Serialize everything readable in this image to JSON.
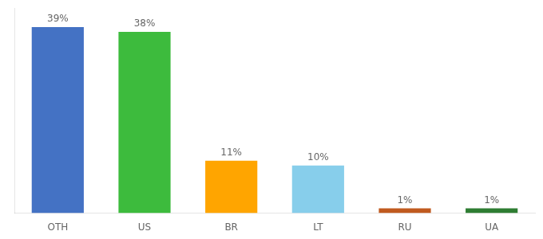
{
  "chart_data": {
    "type": "bar",
    "categories": [
      "OTH",
      "US",
      "BR",
      "LT",
      "RU",
      "UA"
    ],
    "values": [
      39,
      38,
      11,
      10,
      1,
      1
    ],
    "value_labels": [
      "39%",
      "38%",
      "11%",
      "10%",
      "1%",
      "1%"
    ],
    "colors": [
      "#4472c4",
      "#3dbb3d",
      "#ffa500",
      "#87ceeb",
      "#c05a1f",
      "#2e7d32"
    ],
    "ylim": [
      0,
      43
    ],
    "yticks": [],
    "data_labels": true,
    "tick_labels": "x",
    "grid": false
  }
}
